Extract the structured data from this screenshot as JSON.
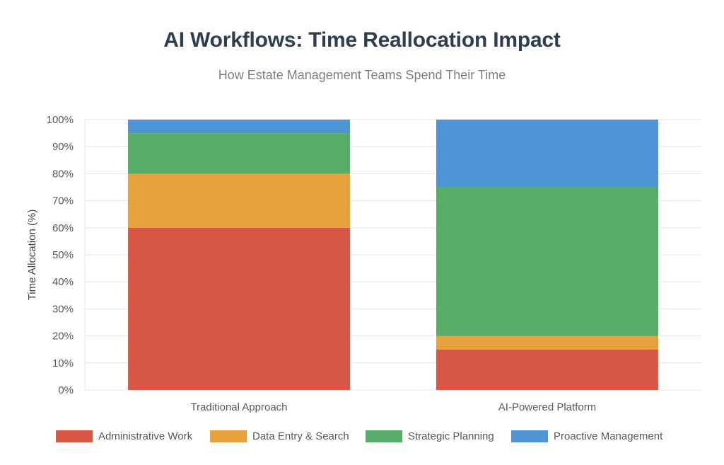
{
  "title": "AI Workflows: Time Reallocation Impact",
  "subtitle": "How Estate Management Teams Spend Their Time",
  "chart_data": {
    "type": "bar",
    "stacked": true,
    "title": "AI Workflows: Time Reallocation Impact",
    "subtitle": "How Estate Management Teams Spend Their Time",
    "xlabel": "",
    "ylabel": "Time Allocation (%)",
    "ylim": [
      0,
      100
    ],
    "yticks": [
      "0%",
      "10%",
      "20%",
      "30%",
      "40%",
      "50%",
      "60%",
      "70%",
      "80%",
      "90%",
      "100%"
    ],
    "categories": [
      "Traditional Approach",
      "AI-Powered Platform"
    ],
    "series": [
      {
        "name": "Administrative Work",
        "color": "#d85845",
        "values": [
          60,
          15
        ]
      },
      {
        "name": "Data Entry & Search",
        "color": "#e8a23c",
        "values": [
          20,
          5
        ]
      },
      {
        "name": "Strategic Planning",
        "color": "#58ad6a",
        "values": [
          15,
          55
        ]
      },
      {
        "name": "Proactive Management",
        "color": "#4f94d4",
        "values": [
          5,
          25
        ]
      }
    ],
    "grid": true,
    "legend": "bottom"
  }
}
